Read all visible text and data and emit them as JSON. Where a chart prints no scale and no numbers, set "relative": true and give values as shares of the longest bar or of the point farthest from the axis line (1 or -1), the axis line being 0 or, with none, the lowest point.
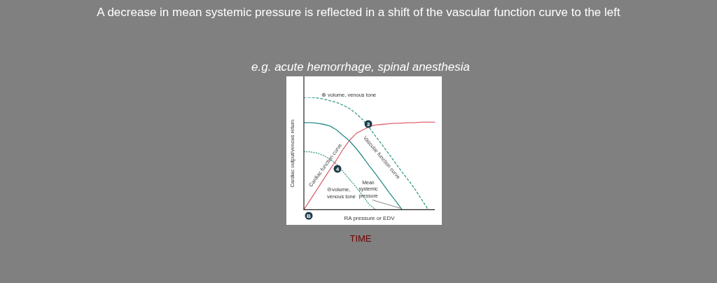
{
  "chart_data": {
    "type": "line",
    "relative": true,
    "title": "A decrease in mean systemic pressure is reflected in a shift of the vascular function curve to the left",
    "subtitle": "e.g. acute hemorrhage, spinal anesthesia",
    "xlabel": "RA pressure or EDV",
    "ylabel": "Cardiac output/venous return",
    "categories": [
      null,
      null,
      null,
      null,
      null,
      null,
      null,
      null,
      null,
      null,
      null,
      null,
      null,
      null,
      null,
      null,
      null,
      null,
      null,
      null,
      null
    ],
    "series": [
      {
        "line_style": "dashed",
        "color": "#3a9a8a",
        "values": [
          1,
          1,
          0.995,
          0.985,
          0.97,
          0.955,
          0.93,
          0.9,
          0.855,
          0.8,
          0.73,
          0.65,
          0.575,
          0.495,
          0.415,
          0.335,
          0.26,
          0.18,
          0.09,
          0,
          null
        ]
      },
      {
        "line_style": "dotted",
        "color": "#3a9a8a",
        "values": [
          0.517,
          0.515,
          0.505,
          0.483,
          0.45,
          0.405,
          0.337,
          0.27,
          0.2,
          0.124,
          0.045,
          0,
          null,
          null,
          null,
          null,
          null,
          null,
          null,
          null,
          null
        ]
      },
      {
        "name": "Vascular function curve",
        "line_style": "solid",
        "color": "#2a8c8c",
        "values": [
          0.775,
          0.775,
          0.77,
          0.76,
          0.745,
          0.71,
          0.66,
          0.61,
          0.545,
          0.47,
          0.39,
          0.315,
          0.235,
          0.155,
          0.08,
          0,
          null,
          null,
          null,
          null,
          null
        ]
      },
      {
        "name": "Cardiac function curve",
        "line_style": "solid",
        "color": "#e06470",
        "values": [
          0,
          0.09,
          0.18,
          0.27,
          0.36,
          0.445,
          0.54,
          0.62,
          0.68,
          0.71,
          0.74,
          0.755,
          0.76,
          0.765,
          0.77,
          0.77,
          0.775,
          0.775,
          0.78,
          0.78,
          0.78
        ]
      }
    ],
    "annotations": [
      "⊕ volume, venous tone",
      "⊖volume, venous tone",
      "Mean systemic pressure",
      "3",
      "4",
      "B",
      "TIME"
    ],
    "legend": false,
    "grid": false,
    "marker": "none"
  }
}
